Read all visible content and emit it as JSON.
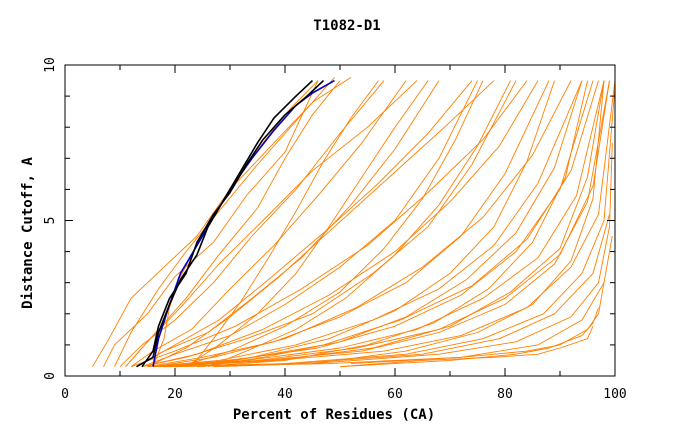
{
  "chart_data": {
    "type": "line",
    "title": "T1082-D1",
    "xlabel": "Percent of Residues (CA)",
    "ylabel": "Distance Cutoff, A",
    "xlim": [
      0,
      100
    ],
    "ylim": [
      0,
      10
    ],
    "xticks": [
      "0",
      "20",
      "40",
      "60",
      "80",
      "100"
    ],
    "yticks": [
      "0",
      "5",
      "10"
    ],
    "grid": false,
    "legend": "none",
    "colors": {
      "background_models": "#ff8000",
      "highlight_blue": "#0000cc",
      "highlight_black": "#000000",
      "axes": "#000000"
    },
    "series": [
      {
        "color": "#ff8000",
        "x": [
          5,
          8,
          12,
          18,
          24,
          30,
          38,
          45,
          52
        ],
        "y": [
          0.3,
          1.2,
          2.5,
          3.5,
          4.5,
          6.0,
          7.5,
          8.8,
          9.6
        ]
      },
      {
        "color": "#ff8000",
        "x": [
          7,
          9,
          15,
          20,
          27,
          33,
          40,
          46
        ],
        "y": [
          0.3,
          1.0,
          2.0,
          3.2,
          4.3,
          5.8,
          7.2,
          9.5
        ]
      },
      {
        "color": "#ff8000",
        "x": [
          10,
          14,
          20,
          27,
          34,
          42,
          50,
          58
        ],
        "y": [
          0.3,
          1.0,
          1.8,
          3.0,
          4.5,
          6.0,
          7.8,
          9.5
        ]
      },
      {
        "color": "#ff8000",
        "x": [
          12,
          16,
          23,
          30,
          38,
          46,
          54,
          62
        ],
        "y": [
          0.3,
          0.8,
          1.5,
          2.8,
          4.2,
          5.8,
          7.5,
          9.5
        ]
      },
      {
        "color": "#ff8000",
        "x": [
          13,
          18,
          26,
          34,
          43,
          52,
          60,
          68
        ],
        "y": [
          0.3,
          0.8,
          1.4,
          2.5,
          3.8,
          5.5,
          7.3,
          9.5
        ]
      },
      {
        "color": "#ff8000",
        "x": [
          14,
          20,
          30,
          40,
          50,
          60,
          68,
          75
        ],
        "y": [
          0.3,
          0.7,
          1.3,
          2.3,
          3.5,
          5.0,
          7.0,
          9.5
        ]
      },
      {
        "color": "#ff8000",
        "x": [
          14,
          22,
          33,
          45,
          56,
          66,
          74,
          82
        ],
        "y": [
          0.3,
          0.6,
          1.2,
          2.0,
          3.3,
          4.8,
          6.8,
          9.5
        ]
      },
      {
        "color": "#ff8000",
        "x": [
          15,
          25,
          38,
          50,
          62,
          72,
          80,
          88
        ],
        "y": [
          0.3,
          0.6,
          1.1,
          1.9,
          3.0,
          4.5,
          6.5,
          9.5
        ]
      },
      {
        "color": "#ff8000",
        "x": [
          15,
          28,
          42,
          56,
          68,
          78,
          86,
          94
        ],
        "y": [
          0.3,
          0.5,
          1.0,
          1.8,
          2.8,
          4.2,
          6.2,
          9.5
        ]
      },
      {
        "color": "#ff8000",
        "x": [
          16,
          30,
          46,
          60,
          72,
          82,
          90,
          96
        ],
        "y": [
          0.3,
          0.5,
          0.9,
          1.6,
          2.6,
          4.0,
          6.0,
          9.5
        ]
      },
      {
        "color": "#ff8000",
        "x": [
          16,
          33,
          50,
          64,
          76,
          86,
          93,
          98
        ],
        "y": [
          0.3,
          0.5,
          0.9,
          1.5,
          2.5,
          3.8,
          5.8,
          9.5
        ]
      },
      {
        "color": "#ff8000",
        "x": [
          17,
          36,
          54,
          68,
          80,
          89,
          95,
          99
        ],
        "y": [
          0.3,
          0.5,
          0.8,
          1.4,
          2.3,
          3.6,
          5.6,
          9.5
        ]
      },
      {
        "color": "#ff8000",
        "x": [
          17,
          38,
          58,
          72,
          84,
          92,
          97,
          100
        ],
        "y": [
          0.3,
          0.5,
          0.8,
          1.3,
          2.2,
          3.5,
          5.2,
          9.5
        ]
      },
      {
        "color": "#ff8000",
        "x": [
          18,
          40,
          62,
          76,
          87,
          94,
          98,
          100
        ],
        "y": [
          0.3,
          0.4,
          0.7,
          1.2,
          2.0,
          3.3,
          5.0,
          9.3
        ]
      },
      {
        "color": "#ff8000",
        "x": [
          18,
          42,
          65,
          79,
          89,
          96,
          99
        ],
        "y": [
          0.3,
          0.4,
          0.7,
          1.2,
          2.0,
          3.3,
          5.2
        ]
      },
      {
        "color": "#ff8000",
        "x": [
          19,
          45,
          68,
          82,
          92,
          97,
          99,
          99.5
        ],
        "y": [
          0.3,
          0.4,
          0.7,
          1.1,
          1.9,
          3.0,
          4.8,
          7.5
        ]
      },
      {
        "color": "#ff8000",
        "x": [
          20,
          48,
          72,
          86,
          94,
          98,
          99.5
        ],
        "y": [
          0.3,
          0.4,
          0.6,
          1.0,
          1.8,
          3.0,
          4.5
        ]
      },
      {
        "color": "#ff8000",
        "x": [
          9,
          12,
          17,
          22,
          28,
          35,
          42,
          49
        ],
        "y": [
          0.3,
          1.4,
          2.8,
          4.0,
          5.3,
          6.8,
          8.2,
          9.6
        ]
      },
      {
        "color": "#ff8000",
        "x": [
          11,
          15,
          21,
          28,
          36,
          45,
          55,
          64
        ],
        "y": [
          0.3,
          1.1,
          2.2,
          3.6,
          5.0,
          6.6,
          8.0,
          9.5
        ]
      },
      {
        "color": "#ff8000",
        "x": [
          13,
          19,
          28,
          37,
          47,
          57,
          66,
          74
        ],
        "y": [
          0.3,
          0.9,
          1.8,
          3.1,
          4.6,
          6.2,
          7.8,
          9.5
        ]
      },
      {
        "color": "#ff8000",
        "x": [
          14,
          24,
          36,
          48,
          60,
          70,
          79,
          86
        ],
        "y": [
          0.3,
          0.7,
          1.5,
          2.6,
          4.0,
          5.6,
          7.4,
          9.5
        ]
      },
      {
        "color": "#ff8000",
        "x": [
          16,
          27,
          40,
          53,
          65,
          76,
          85,
          92
        ],
        "y": [
          0.3,
          0.6,
          1.2,
          2.2,
          3.5,
          5.1,
          7.1,
          9.5
        ]
      },
      {
        "color": "#ff8000",
        "x": [
          17,
          31,
          47,
          61,
          74,
          84,
          92,
          97
        ],
        "y": [
          0.3,
          0.5,
          1.0,
          1.8,
          2.9,
          4.4,
          6.6,
          9.5
        ]
      },
      {
        "color": "#ff8000",
        "x": [
          18,
          35,
          53,
          68,
          80,
          90,
          96,
          99
        ],
        "y": [
          0.3,
          0.5,
          0.9,
          1.5,
          2.5,
          3.9,
          6.1,
          9.5
        ]
      },
      {
        "color": "#ff8000",
        "x": [
          19,
          38,
          56,
          70,
          81,
          90,
          95,
          98
        ],
        "y": [
          0.3,
          0.5,
          0.9,
          1.6,
          2.7,
          4.1,
          6.4,
          9.5
        ]
      },
      {
        "color": "#ff8000",
        "x": [
          20,
          34,
          48,
          60,
          70,
          78,
          84,
          89
        ],
        "y": [
          0.3,
          0.6,
          1.2,
          2.1,
          3.3,
          4.8,
          6.9,
          9.5
        ]
      },
      {
        "color": "#ff8000",
        "x": [
          21,
          30,
          40,
          50,
          58,
          65,
          71,
          76
        ],
        "y": [
          0.3,
          0.8,
          1.6,
          2.7,
          4.1,
          5.7,
          7.6,
          9.5
        ]
      },
      {
        "color": "#ff8000",
        "x": [
          22,
          28,
          35,
          42,
          48,
          54,
          60,
          66
        ],
        "y": [
          0.3,
          1.0,
          2.0,
          3.3,
          4.8,
          6.4,
          8.0,
          9.5
        ]
      },
      {
        "color": "#ff8000",
        "x": [
          23,
          27,
          32,
          37,
          42,
          47,
          52,
          57
        ],
        "y": [
          0.3,
          1.2,
          2.4,
          3.8,
          5.3,
          6.9,
          8.3,
          9.5
        ]
      },
      {
        "color": "#ff8000",
        "x": [
          11,
          16,
          22,
          28,
          35,
          40,
          45,
          50
        ],
        "y": [
          0.3,
          1.3,
          2.5,
          3.9,
          5.4,
          7.0,
          8.4,
          9.5
        ]
      },
      {
        "color": "#ff8000",
        "x": [
          25,
          36,
          50,
          62,
          73,
          82,
          89,
          94
        ],
        "y": [
          0.3,
          0.6,
          1.1,
          1.9,
          3.1,
          4.6,
          6.7,
          9.5
        ]
      },
      {
        "color": "#ff8000",
        "x": [
          27,
          45,
          62,
          75,
          85,
          92,
          96,
          98
        ],
        "y": [
          0.3,
          0.4,
          0.8,
          1.4,
          2.3,
          3.7,
          5.7,
          9.5
        ]
      },
      {
        "color": "#ff8000",
        "x": [
          24,
          40,
          55,
          67,
          77,
          85,
          91,
          95
        ],
        "y": [
          0.3,
          0.5,
          1.0,
          1.7,
          2.8,
          4.3,
          6.4,
          9.5
        ]
      },
      {
        "color": "#ff8000",
        "x": [
          26,
          33,
          42,
          51,
          60,
          68,
          75,
          81
        ],
        "y": [
          0.3,
          0.8,
          1.5,
          2.5,
          3.9,
          5.5,
          7.4,
          9.5
        ]
      },
      {
        "color": "#ff8000",
        "x": [
          12,
          20,
          31,
          43,
          55,
          66,
          76,
          84
        ],
        "y": [
          0.3,
          0.8,
          1.6,
          2.8,
          4.2,
          5.9,
          7.6,
          9.5
        ]
      },
      {
        "color": "#ff8000",
        "x": [
          15,
          22,
          30,
          39,
          49,
          59,
          69,
          78
        ],
        "y": [
          0.3,
          0.9,
          1.9,
          3.2,
          4.8,
          6.4,
          8.0,
          9.5
        ]
      },
      {
        "color": "#ff8000",
        "x": [
          50,
          65,
          78,
          86,
          90,
          95,
          96
        ],
        "y": [
          0.3,
          0.5,
          0.6,
          0.7,
          0.9,
          1.2,
          1.6
        ]
      },
      {
        "color": "#ff8000",
        "x": [
          50,
          70,
          82,
          88,
          94,
          96,
          97
        ],
        "y": [
          0.3,
          0.5,
          0.7,
          0.9,
          1.3,
          1.7,
          2.2
        ]
      },
      {
        "color": "#ff8000",
        "x": [
          52,
          72,
          84,
          90,
          95,
          97,
          98
        ],
        "y": [
          0.4,
          0.6,
          0.8,
          1.0,
          1.5,
          2.0,
          3.0
        ]
      },
      {
        "color": "#ff8000",
        "x": [
          16,
          18,
          19,
          21,
          24,
          27,
          31,
          36,
          41,
          46
        ],
        "y": [
          0.3,
          1.2,
          2.2,
          3.2,
          4.2,
          5.1,
          6.3,
          7.5,
          8.6,
          9.5
        ]
      },
      {
        "color": "#0000cc",
        "x": [
          16,
          17,
          19,
          21,
          24,
          27,
          30,
          34,
          38,
          42,
          45,
          49
        ],
        "y": [
          0.3,
          1.2,
          2.3,
          3.3,
          4.2,
          5.1,
          6.0,
          7.0,
          7.9,
          8.7,
          9.1,
          9.5
        ]
      },
      {
        "color": "#000000",
        "x": [
          14,
          16,
          17,
          19,
          22,
          24,
          27,
          30,
          33,
          36,
          40,
          44,
          47
        ],
        "y": [
          0.3,
          0.8,
          1.6,
          2.5,
          3.3,
          4.3,
          5.2,
          5.9,
          6.8,
          7.6,
          8.4,
          9.0,
          9.5
        ]
      },
      {
        "color": "#000000",
        "x": [
          13,
          16,
          17,
          19,
          21,
          24,
          26,
          29,
          32,
          35,
          38,
          42,
          45
        ],
        "y": [
          0.3,
          0.6,
          1.4,
          2.3,
          3.1,
          3.9,
          4.8,
          5.7,
          6.6,
          7.5,
          8.3,
          9.0,
          9.5
        ]
      }
    ]
  }
}
